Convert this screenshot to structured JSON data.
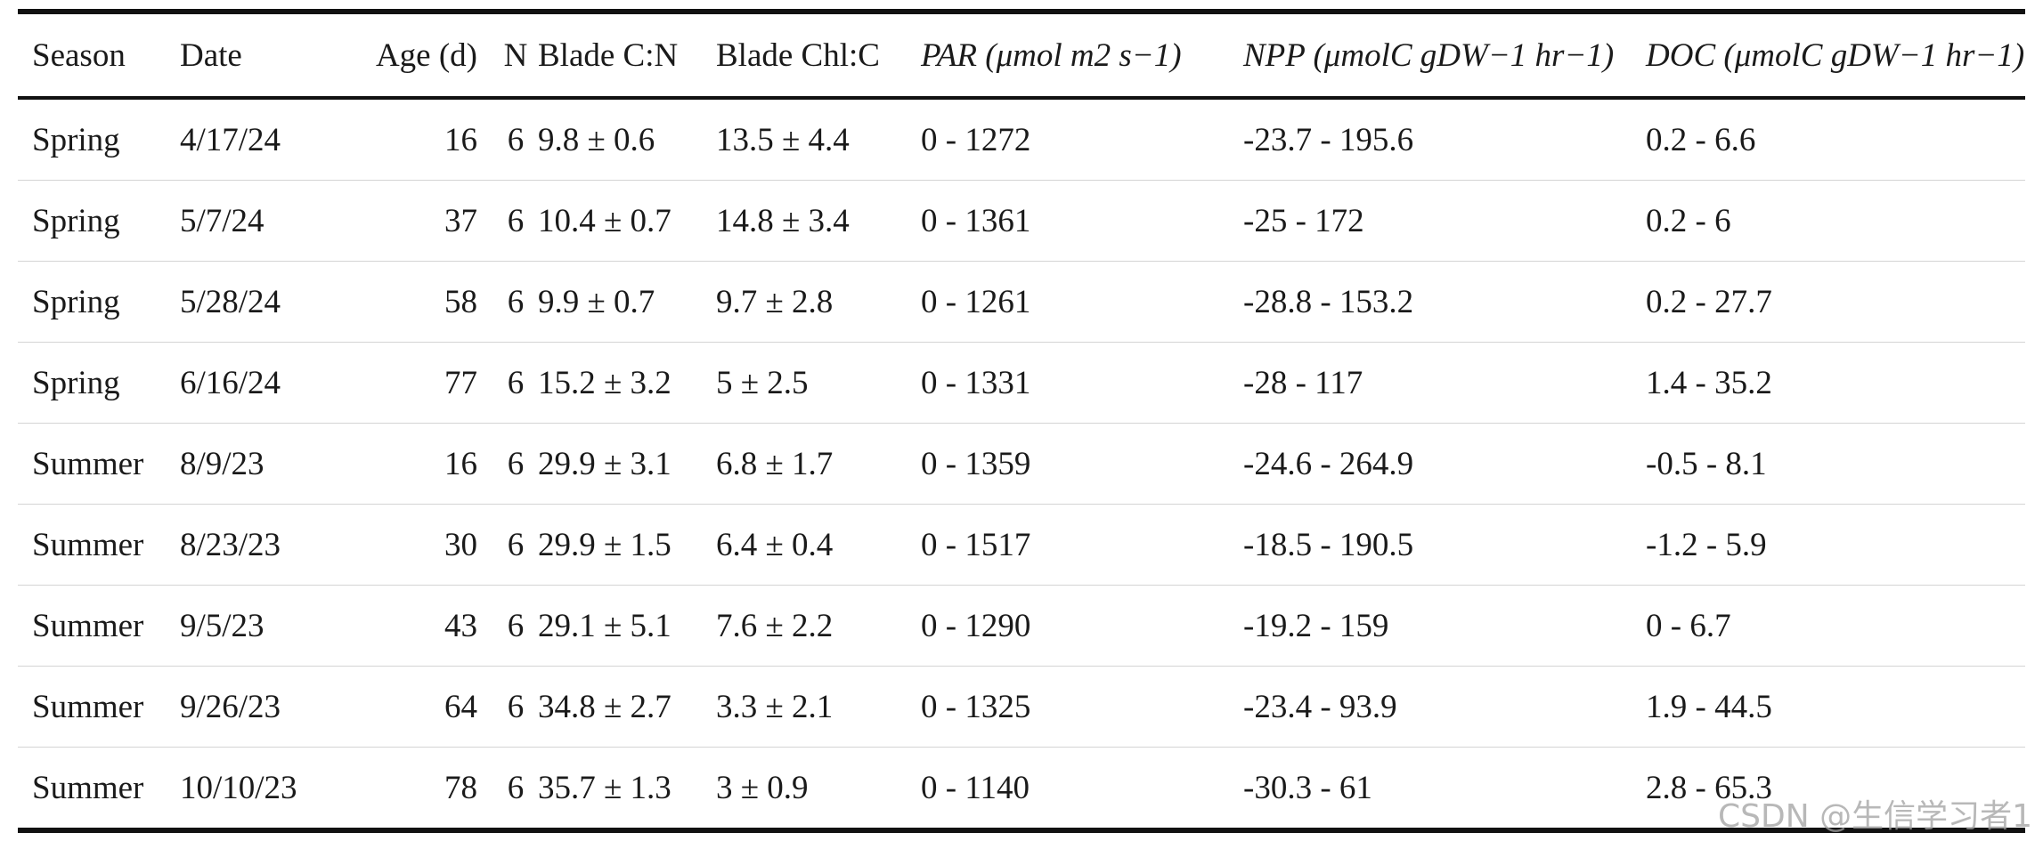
{
  "table": {
    "headers": {
      "season": "Season",
      "date": "Date",
      "age": "Age (d)",
      "n": "N",
      "blade_cn": "Blade C:N",
      "blade_chl": "Blade Chl:C",
      "par": "PAR (μmol m2 s−1)",
      "npp": "NPP (μmolC gDW−1 hr−1)",
      "doc": "DOC (μmolC gDW−1 hr−1)"
    },
    "rows": [
      {
        "season": "Spring",
        "date": "4/17/24",
        "age": "16",
        "n": "6",
        "blade_cn": "9.8 ± 0.6",
        "blade_chl": "13.5 ± 4.4",
        "par": "0 - 1272",
        "npp": "-23.7 - 195.6",
        "doc": "0.2 - 6.6"
      },
      {
        "season": "Spring",
        "date": "5/7/24",
        "age": "37",
        "n": "6",
        "blade_cn": "10.4 ± 0.7",
        "blade_chl": "14.8 ± 3.4",
        "par": "0 - 1361",
        "npp": "-25 - 172",
        "doc": "0.2 - 6"
      },
      {
        "season": "Spring",
        "date": "5/28/24",
        "age": "58",
        "n": "6",
        "blade_cn": "9.9 ± 0.7",
        "blade_chl": "9.7 ± 2.8",
        "par": "0 - 1261",
        "npp": "-28.8 - 153.2",
        "doc": "0.2 - 27.7"
      },
      {
        "season": "Spring",
        "date": "6/16/24",
        "age": "77",
        "n": "6",
        "blade_cn": "15.2 ± 3.2",
        "blade_chl": "5 ± 2.5",
        "par": "0 - 1331",
        "npp": "-28 - 117",
        "doc": "1.4 - 35.2"
      },
      {
        "season": "Summer",
        "date": "8/9/23",
        "age": "16",
        "n": "6",
        "blade_cn": "29.9 ± 3.1",
        "blade_chl": "6.8 ± 1.7",
        "par": "0 - 1359",
        "npp": "-24.6 - 264.9",
        "doc": "-0.5 - 8.1"
      },
      {
        "season": "Summer",
        "date": "8/23/23",
        "age": "30",
        "n": "6",
        "blade_cn": "29.9 ± 1.5",
        "blade_chl": "6.4 ± 0.4",
        "par": "0 - 1517",
        "npp": "-18.5 - 190.5",
        "doc": "-1.2 - 5.9"
      },
      {
        "season": "Summer",
        "date": "9/5/23",
        "age": "43",
        "n": "6",
        "blade_cn": "29.1 ± 5.1",
        "blade_chl": "7.6 ± 2.2",
        "par": "0 - 1290",
        "npp": "-19.2 - 159",
        "doc": "0 - 6.7"
      },
      {
        "season": "Summer",
        "date": "9/26/23",
        "age": "64",
        "n": "6",
        "blade_cn": "34.8 ± 2.7",
        "blade_chl": "3.3 ± 2.1",
        "par": "0 - 1325",
        "npp": "-23.4 - 93.9",
        "doc": "1.9 - 44.5"
      },
      {
        "season": "Summer",
        "date": "10/10/23",
        "age": "78",
        "n": "6",
        "blade_cn": "35.7 ± 1.3",
        "blade_chl": "3 ± 0.9",
        "par": "0 - 1140",
        "npp": "-30.3 - 61",
        "doc": "2.8 - 65.3"
      }
    ]
  },
  "watermark": "CSDN @生信学习者1"
}
